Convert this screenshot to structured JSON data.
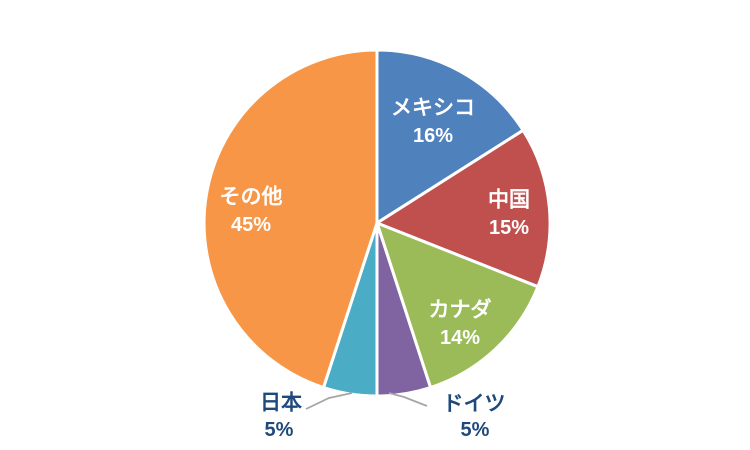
{
  "chart_data": {
    "type": "pie",
    "title": "",
    "categories": [
      "メキシコ",
      "中国",
      "カナダ",
      "ドイツ",
      "日本",
      "その他"
    ],
    "values": [
      16,
      15,
      14,
      5,
      5,
      45
    ],
    "percent_labels": [
      "16%",
      "15%",
      "14%",
      "5%",
      "5%",
      "45%"
    ],
    "colors": [
      "#4F81BD",
      "#C0504D",
      "#9BBB59",
      "#8064A2",
      "#4BACC6",
      "#F79646"
    ],
    "start_angle_deg": 0,
    "direction": "clockwise",
    "label_placement": [
      "inside",
      "inside",
      "inside",
      "outside",
      "outside",
      "inside"
    ],
    "inside_label_color": "#FFFFFF",
    "outside_label_color": "#1F497D",
    "slice_gap_color": "#FFFFFF",
    "leader_line_color": "#A6A6A6",
    "background_color": "#FFFFFF",
    "legend": false,
    "grid": false
  }
}
